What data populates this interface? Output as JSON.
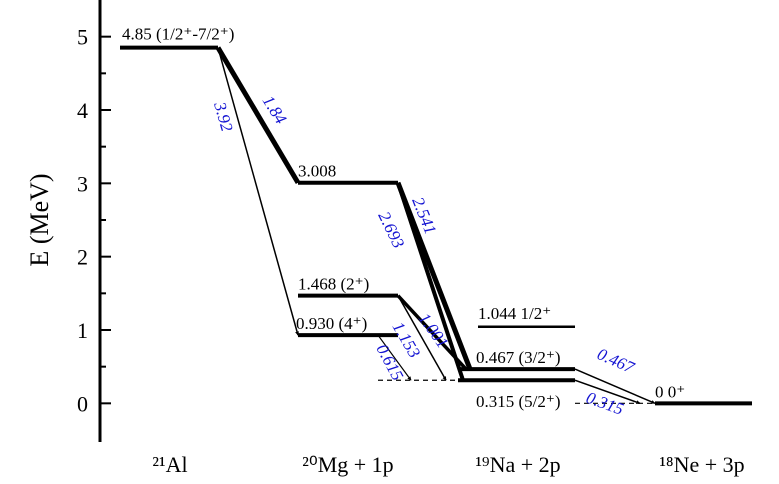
{
  "chart_data": {
    "type": "level_scheme",
    "ylabel": "E (MeV)",
    "ylim": [
      -0.5,
      5.5
    ],
    "yticks": [
      0,
      1,
      2,
      3,
      4,
      5
    ],
    "categories": [
      "²¹Al",
      "²⁰Mg + 1p",
      "¹⁹Na + 2p",
      "¹⁸Ne + 3p"
    ],
    "levels": [
      {
        "category": 0,
        "energy": 4.85,
        "label": "4.85 (1/2⁺-7/2⁺)"
      },
      {
        "category": 1,
        "energy": 3.008,
        "label": "3.008"
      },
      {
        "category": 1,
        "energy": 1.468,
        "label": "1.468 (2⁺)"
      },
      {
        "category": 1,
        "energy": 0.93,
        "label": "0.930 (4⁺)"
      },
      {
        "category": 2,
        "energy": 1.044,
        "label": "1.044 1/2⁺"
      },
      {
        "category": 2,
        "energy": 0.467,
        "label": "0.467 (3/2⁺)"
      },
      {
        "category": 2,
        "energy": 0.315,
        "label": "0.315 (5/2⁺)"
      },
      {
        "category": 3,
        "energy": 0,
        "label": "0 0⁺"
      }
    ],
    "transitions": [
      {
        "from": 0,
        "to": 1,
        "energy": 1.84
      },
      {
        "from": 0,
        "to": 3,
        "energy": 3.92
      },
      {
        "from": 1,
        "to": 5,
        "energy": 2.541
      },
      {
        "from": 1,
        "to": 6,
        "energy": 2.693
      },
      {
        "from": 2,
        "to": 5,
        "energy": 1.001
      },
      {
        "from": 2,
        "to": 6,
        "energy": 1.153
      },
      {
        "from": 3,
        "to": 6,
        "energy": 0.615
      },
      {
        "from": 5,
        "to": 7,
        "energy": 0.467
      },
      {
        "from": 6,
        "to": 7,
        "energy": 0.315
      }
    ]
  }
}
